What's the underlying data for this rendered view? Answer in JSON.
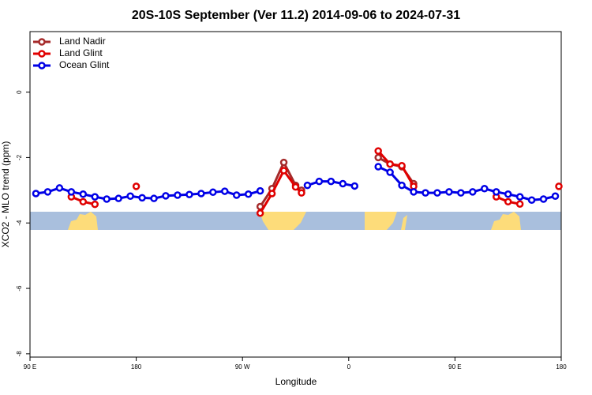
{
  "chart_data": {
    "type": "line",
    "title": "20S-10S September (Ver 11.2)   2014-09-06 to 2024-07-31",
    "xlabel": "Longitude",
    "ylabel": "XCO2 - MLO trend (ppm)",
    "xlim": [
      90,
      540
    ],
    "ylim": [
      -8.1,
      1.85
    ],
    "xticks": [
      {
        "value": 90,
        "label": "90 E"
      },
      180,
      {
        "value": 270,
        "label": "90 W"
      },
      {
        "value": 360,
        "label": "0"
      },
      {
        "value": 450,
        "label": "90 E"
      },
      {
        "value": 540,
        "label": "180"
      }
    ],
    "yticks": [
      -8,
      -6,
      -4,
      -2,
      0
    ],
    "legend": "upper left",
    "series": [
      {
        "name": "Land Nadir",
        "color": "#a52a2a",
        "x": [
          285,
          295,
          305,
          315,
          320,
          null,
          385,
          395,
          405,
          415
        ],
        "values": [
          -3.5,
          -2.95,
          -2.15,
          -2.85,
          -3.0,
          null,
          -2.0,
          -2.2,
          -2.28,
          -2.8
        ]
      },
      {
        "name": "Land Glint",
        "color": "#e00000",
        "x": [
          125,
          135,
          145,
          null,
          180,
          null,
          285,
          295,
          305,
          315,
          320,
          null,
          385,
          395,
          405,
          415,
          null,
          485,
          495,
          505,
          null,
          538
        ],
        "values": [
          -3.2,
          -3.35,
          -3.43,
          null,
          -2.88,
          null,
          -3.7,
          -3.1,
          -2.4,
          -2.9,
          -3.08,
          null,
          -1.8,
          -2.2,
          -2.25,
          -2.88,
          null,
          -3.2,
          -3.35,
          -3.42,
          null,
          -2.88
        ]
      },
      {
        "name": "Ocean Glint",
        "color": "#0000e6",
        "x": [
          95,
          105,
          115,
          125,
          135,
          145,
          155,
          165,
          175,
          185,
          195,
          205,
          215,
          225,
          235,
          245,
          255,
          265,
          275,
          285,
          null,
          325,
          335,
          345,
          355,
          365,
          null,
          385,
          395,
          405,
          415,
          425,
          435,
          445,
          455,
          465,
          475,
          485,
          495,
          505,
          515,
          525,
          535
        ],
        "values": [
          -3.1,
          -3.05,
          -2.93,
          -3.05,
          -3.12,
          -3.2,
          -3.27,
          -3.25,
          -3.18,
          -3.23,
          -3.25,
          -3.17,
          -3.15,
          -3.13,
          -3.1,
          -3.06,
          -3.03,
          -3.15,
          -3.12,
          -3.02,
          null,
          -2.85,
          -2.73,
          -2.73,
          -2.8,
          -2.87,
          null,
          -2.28,
          -2.45,
          -2.85,
          -3.05,
          -3.08,
          -3.08,
          -3.05,
          -3.08,
          -3.05,
          -2.95,
          -3.05,
          -3.12,
          -3.2,
          -3.3,
          -3.27,
          -3.18
        ]
      }
    ]
  }
}
